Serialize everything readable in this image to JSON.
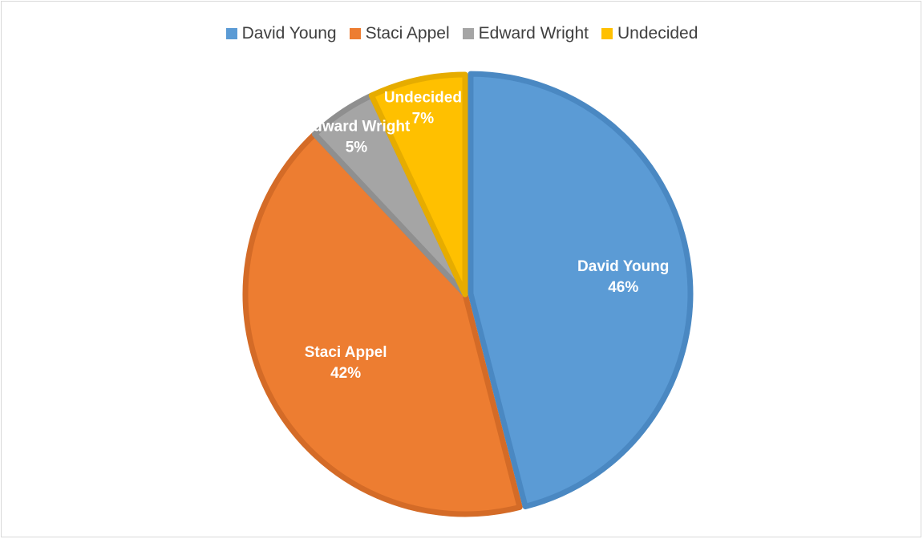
{
  "chart_data": {
    "type": "pie",
    "title": "",
    "legend_position": "top",
    "start_angle_deg": 0,
    "direction": "clockwise",
    "slices": [
      {
        "name": "David Young",
        "value": 46,
        "label": "46%",
        "color": "#5B9BD5",
        "edge": "#4A88C2"
      },
      {
        "name": "Staci Appel",
        "value": 42,
        "label": "42%",
        "color": "#ED7D31",
        "edge": "#D46B27"
      },
      {
        "name": "Edward Wright",
        "value": 5,
        "label": "5%",
        "color": "#A5A5A5",
        "edge": "#8F8F8F"
      },
      {
        "name": "Undecided",
        "value": 7,
        "label": "7%",
        "color": "#FFC000",
        "edge": "#E6AC00"
      }
    ]
  }
}
